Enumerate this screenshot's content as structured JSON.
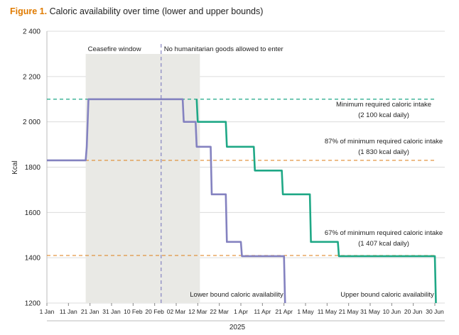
{
  "figure": {
    "label": "Figure 1.",
    "title": "Caloric availability over time (lower and upper bounds)"
  },
  "chart_data": {
    "type": "line",
    "title": "Caloric availability over time (lower and upper bounds)",
    "ylabel": "Kcal",
    "xlabel": "2025",
    "ylim": [
      1200,
      2400
    ],
    "xlim": [
      0,
      180
    ],
    "y_ticks": [
      1200,
      1400,
      1600,
      1800,
      2000,
      2200,
      2400
    ],
    "y_tick_labels": [
      "1200",
      "1400",
      "1600",
      "1800",
      "2 000",
      "2 200",
      "2 400"
    ],
    "x_ticks": [
      {
        "day": 0,
        "label": "1 Jan"
      },
      {
        "day": 10,
        "label": "11 Jan"
      },
      {
        "day": 20,
        "label": "21 Jan"
      },
      {
        "day": 30,
        "label": "31 Jan"
      },
      {
        "day": 40,
        "label": "10 Feb"
      },
      {
        "day": 50,
        "label": "20 Feb"
      },
      {
        "day": 60,
        "label": "02 Mar"
      },
      {
        "day": 70,
        "label": "12 Mar"
      },
      {
        "day": 80,
        "label": "22 Mar"
      },
      {
        "day": 90,
        "label": "1 Apr"
      },
      {
        "day": 100,
        "label": "11 Apr"
      },
      {
        "day": 110,
        "label": "21 Apr"
      },
      {
        "day": 120,
        "label": "1 May"
      },
      {
        "day": 130,
        "label": "11 May"
      },
      {
        "day": 140,
        "label": "21 May"
      },
      {
        "day": 150,
        "label": "31 May"
      },
      {
        "day": 160,
        "label": "10 Jun"
      },
      {
        "day": 170,
        "label": "20 Jun"
      },
      {
        "day": 180,
        "label": "30 Jun"
      }
    ],
    "series": [
      {
        "name": "Lower bound caloric availability",
        "color": "#8482c0",
        "points": [
          [
            0,
            1830
          ],
          [
            18,
            1830
          ],
          [
            18.5,
            1890
          ],
          [
            19.3,
            2100
          ],
          [
            63,
            2100
          ],
          [
            63.5,
            2000
          ],
          [
            69,
            2000
          ],
          [
            69.5,
            1890
          ],
          [
            76,
            1890
          ],
          [
            76.5,
            1680
          ],
          [
            83,
            1680
          ],
          [
            83.5,
            1470
          ],
          [
            90,
            1470
          ],
          [
            90.5,
            1407
          ],
          [
            110,
            1407
          ],
          [
            110.5,
            1200
          ]
        ]
      },
      {
        "name": "Upper bound caloric availability",
        "color": "#1fa886",
        "points": [
          [
            69.5,
            2100
          ],
          [
            70,
            2000
          ],
          [
            83,
            2000
          ],
          [
            83.5,
            1890
          ],
          [
            96,
            1890
          ],
          [
            96.5,
            1785
          ],
          [
            109,
            1785
          ],
          [
            109.5,
            1680
          ],
          [
            122,
            1680
          ],
          [
            122.5,
            1470
          ],
          [
            135,
            1470
          ],
          [
            135.5,
            1407
          ],
          [
            180,
            1407
          ],
          [
            180.5,
            1200
          ]
        ]
      }
    ],
    "reference_lines": [
      {
        "name": "min-required",
        "value": 2100,
        "color": "#1fa886",
        "label_lines": [
          "Minimum required caloric intake",
          "(2 100 kcal daily)"
        ]
      },
      {
        "name": "87-percent",
        "value": 1830,
        "color": "#e08a2e",
        "label_lines": [
          "87% of minimum required caloric intake",
          "(1 830 kcal daily)"
        ]
      },
      {
        "name": "67-percent",
        "value": 1407,
        "color": "#e08a2e",
        "label_lines": [
          "67% of minimum required caloric intake",
          "(1 407 kcal daily)"
        ]
      }
    ],
    "annotations": {
      "ceasefire": {
        "label": "Ceasefire window",
        "start_day": 18,
        "end_day": 71
      },
      "no_goods": {
        "label": "No humanitarian goods allowed to enter",
        "day": 53
      },
      "lower_label": "Lower bound caloric availability",
      "upper_label": "Upper bound caloric availability"
    }
  }
}
